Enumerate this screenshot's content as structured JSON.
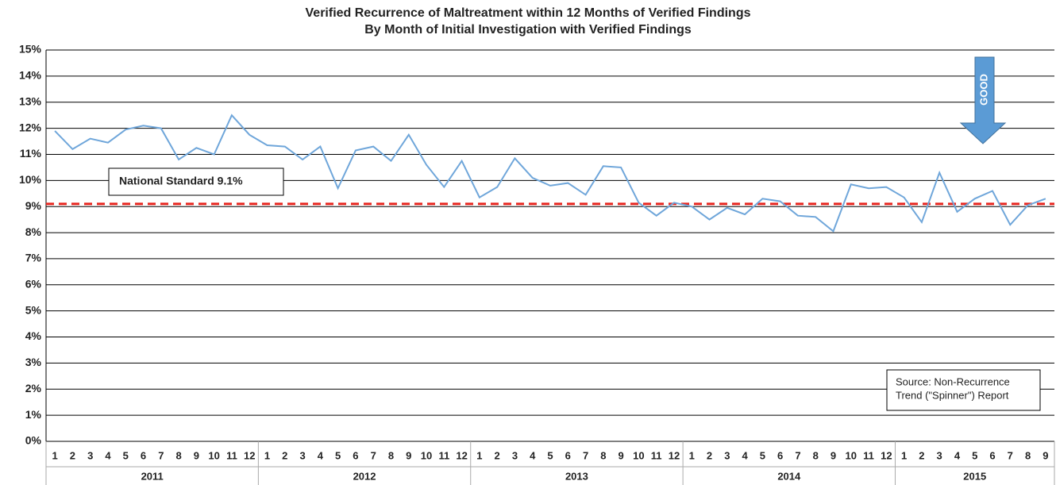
{
  "chart_data": {
    "type": "line",
    "title": [
      "Verified Recurrence of Maltreatment within 12 Months of Verified Findings",
      "By Month of Initial Investigation with Verified Findings"
    ],
    "categories": [
      "1",
      "2",
      "3",
      "4",
      "5",
      "6",
      "7",
      "8",
      "9",
      "10",
      "11",
      "12",
      "1",
      "2",
      "3",
      "4",
      "5",
      "6",
      "7",
      "8",
      "9",
      "10",
      "11",
      "12",
      "1",
      "2",
      "3",
      "4",
      "5",
      "6",
      "7",
      "8",
      "9",
      "10",
      "11",
      "12",
      "1",
      "2",
      "3",
      "4",
      "5",
      "6",
      "7",
      "8",
      "9",
      "10",
      "11",
      "12",
      "1",
      "2",
      "3",
      "4",
      "5",
      "6",
      "7",
      "8",
      "9"
    ],
    "years": [
      "2011",
      "2012",
      "2013",
      "2014",
      "2015"
    ],
    "series": [
      {
        "name": "Verified Recurrence",
        "color": "#6fa6da",
        "values": [
          11.9,
          11.2,
          11.6,
          11.45,
          11.95,
          12.1,
          12.0,
          10.8,
          11.25,
          11.0,
          12.5,
          11.75,
          11.35,
          11.3,
          10.8,
          11.3,
          9.7,
          11.15,
          11.3,
          10.75,
          11.75,
          10.6,
          9.75,
          10.75,
          9.35,
          9.75,
          10.85,
          10.1,
          9.8,
          9.9,
          9.45,
          10.55,
          10.5,
          9.15,
          8.65,
          9.15,
          9.0,
          8.5,
          8.95,
          8.7,
          9.3,
          9.2,
          8.65,
          8.6,
          8.05,
          9.85,
          9.7,
          9.75,
          9.35,
          8.4,
          10.3,
          8.8,
          9.3,
          9.6,
          8.3,
          9.05,
          9.3
        ]
      }
    ],
    "reference_line": {
      "value": 9.1,
      "label": "National Standard 9.1%",
      "color": "#e8261f"
    },
    "ylim": [
      0,
      15
    ],
    "yticks": [
      {
        "value": 0,
        "label": "0%"
      },
      {
        "value": 1,
        "label": "1%"
      },
      {
        "value": 2,
        "label": "2%"
      },
      {
        "value": 3,
        "label": "3%"
      },
      {
        "value": 4,
        "label": "4%"
      },
      {
        "value": 5,
        "label": "5%"
      },
      {
        "value": 6,
        "label": "6%"
      },
      {
        "value": 7,
        "label": "7%"
      },
      {
        "value": 8,
        "label": "8%"
      },
      {
        "value": 9,
        "label": "9%"
      },
      {
        "value": 10,
        "label": "10%"
      },
      {
        "value": 11,
        "label": "11%"
      },
      {
        "value": 12,
        "label": "12%"
      },
      {
        "value": 13,
        "label": "13%"
      },
      {
        "value": 14,
        "label": "14%"
      },
      {
        "value": 15,
        "label": "15%"
      }
    ],
    "grid": true,
    "annotations": {
      "arrow": "GOOD",
      "source": [
        "Source: Non-Recurrence",
        "Trend (\"Spinner\") Report"
      ]
    }
  }
}
